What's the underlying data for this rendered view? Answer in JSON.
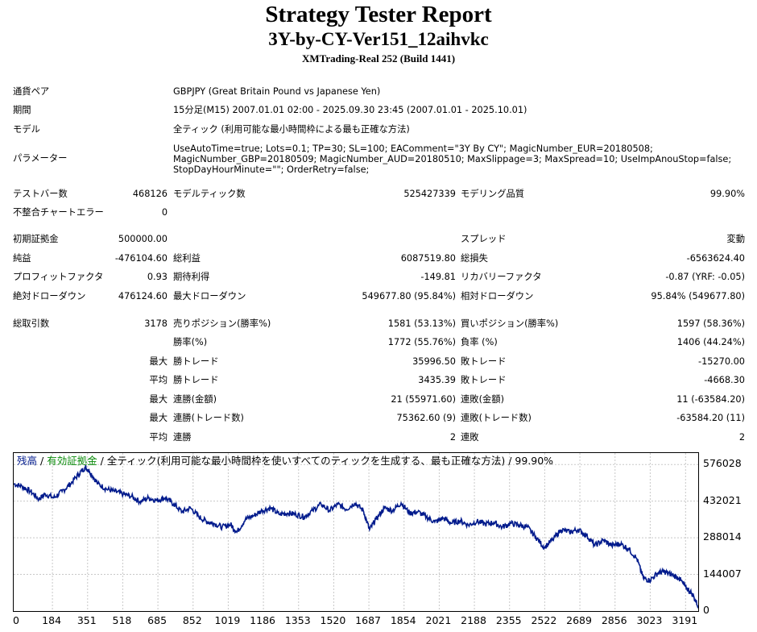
{
  "header": {
    "title": "Strategy Tester Report",
    "ea_name": "3Y-by-CY-Ver151_12aihvkc",
    "server": "XMTrading-Real 252 (Build 1441)"
  },
  "info": {
    "symbol_label": "通貨ペア",
    "symbol_value": "GBPJPY (Great Britain Pound vs Japanese Yen)",
    "period_label": "期間",
    "period_value": "15分足(M15) 2007.01.01 02:00 - 2025.09.30 23:45 (2007.01.01 - 2025.10.01)",
    "model_label": "モデル",
    "model_value": "全ティック (利用可能な最小時間枠による最も正確な方法)",
    "params_label": "パラメーター",
    "params_value": "UseAutoTime=true; Lots=0.1; TP=30; SL=100; EAComment=\"3Y By CY\"; MagicNumber_EUR=20180508; MagicNumber_GBP=20180509; MagicNumber_AUD=20180510; MaxSlippage=3; MaxSpread=10; UseImpAnouStop=false; StopDayHourMinute=\"\"; OrderRetry=false;"
  },
  "stats": {
    "bars_label": "テストバー数",
    "bars_value": "468126",
    "ticks_label": "モデルティック数",
    "ticks_value": "525427339",
    "quality_label": "モデリング品質",
    "quality_value": "99.90%",
    "mismatch_label": "不整合チャートエラー",
    "mismatch_value": "0",
    "deposit_label": "初期証拠金",
    "deposit_value": "500000.00",
    "spread_label": "スプレッド",
    "spread_value": "変動",
    "net_label": "純益",
    "net_value": "-476104.60",
    "gross_profit_label": "総利益",
    "gross_profit_value": "6087519.80",
    "gross_loss_label": "総損失",
    "gross_loss_value": "-6563624.40",
    "pf_label": "プロフィットファクタ",
    "pf_value": "0.93",
    "payoff_label": "期待利得",
    "payoff_value": "-149.81",
    "recovery_label": "リカバリーファクタ",
    "recovery_value": "-0.87 (YRF: -0.05)",
    "abs_dd_label": "絶対ドローダウン",
    "abs_dd_value": "476124.60",
    "max_dd_label": "最大ドローダウン",
    "max_dd_value": "549677.80 (95.84%)",
    "rel_dd_label": "相対ドローダウン",
    "rel_dd_value": "95.84% (549677.80)",
    "trades_label": "総取引数",
    "trades_value": "3178",
    "short_label": "売りポジション(勝率%)",
    "short_value": "1581 (53.13%)",
    "long_label": "買いポジション(勝率%)",
    "long_value": "1597 (58.36%)",
    "win_label": "勝率(%)",
    "win_value": "1772 (55.76%)",
    "loss_label": "負率 (%)",
    "loss_value": "1406 (44.24%)",
    "max_prefix": "最大",
    "avg_prefix": "平均",
    "largest_win_label": "勝トレード",
    "largest_win_value": "35996.50",
    "largest_loss_label": "敗トレード",
    "largest_loss_value": "-15270.00",
    "avg_win_label": "勝トレード",
    "avg_win_value": "3435.39",
    "avg_loss_label": "敗トレード",
    "avg_loss_value": "-4668.30",
    "consec_win_money_label": "連勝(金額)",
    "consec_win_money_value": "21 (55971.60)",
    "consec_loss_money_label": "連敗(金額)",
    "consec_loss_money_value": "11 (-63584.20)",
    "consec_win_trades_label": "連勝(トレード数)",
    "consec_win_trades_value": "75362.60 (9)",
    "consec_loss_trades_label": "連敗(トレード数)",
    "consec_loss_trades_value": "-63584.20 (11)",
    "avg_consec_win_label": "連勝",
    "avg_consec_win_value": "2",
    "avg_consec_loss_label": "連敗",
    "avg_consec_loss_value": "2"
  },
  "chart_data": {
    "type": "line",
    "title_balance": "残高",
    "title_sep": " / ",
    "title_equity": "有効証拠金",
    "title_rest": " / 全ティック(利用可能な最小時間枠を使いすべてのティックを生成する、最も正確な方法) / 99.90%",
    "ylim": [
      0,
      621000
    ],
    "xlim": [
      0,
      3251
    ],
    "y_ticks": [
      576028,
      432021,
      288014,
      144007,
      0
    ],
    "y_tick_labels": [
      "576028",
      "432021",
      "288014",
      "144007",
      "0"
    ],
    "x_ticks": [
      0,
      184,
      351,
      518,
      685,
      852,
      1019,
      1186,
      1353,
      1520,
      1687,
      1854,
      2021,
      2188,
      2355,
      2522,
      2689,
      2856,
      3023,
      3191
    ],
    "x_tick_labels": [
      "0",
      "184",
      "351",
      "518",
      "685",
      "852",
      "1019",
      "1186",
      "1353",
      "1520",
      "1687",
      "1854",
      "2021",
      "2188",
      "2355",
      "2522",
      "2689",
      "2856",
      "3023",
      "3191"
    ],
    "colors": {
      "line": "#001a8c",
      "grid": "#c8c8c8",
      "equity_label": "#0a8a0a"
    },
    "series": [
      {
        "name": "残高",
        "x": [
          0,
          40,
          80,
          120,
          150,
          190,
          230,
          270,
          310,
          340,
          360,
          400,
          440,
          480,
          520,
          560,
          600,
          640,
          680,
          720,
          760,
          800,
          840,
          880,
          920,
          950,
          990,
          1030,
          1060,
          1100,
          1140,
          1180,
          1220,
          1260,
          1300,
          1340,
          1380,
          1420,
          1460,
          1500,
          1540,
          1580,
          1620,
          1660,
          1690,
          1720,
          1760,
          1800,
          1840,
          1880,
          1920,
          1960,
          2000,
          2040,
          2080,
          2120,
          2160,
          2200,
          2240,
          2280,
          2320,
          2360,
          2400,
          2440,
          2480,
          2520,
          2560,
          2600,
          2640,
          2680,
          2720,
          2760,
          2800,
          2840,
          2880,
          2920,
          2960,
          2990,
          3020,
          3060,
          3090,
          3120,
          3160,
          3190,
          3220,
          3251
        ],
        "values": [
          500000,
          490000,
          470000,
          440000,
          460000,
          445000,
          470000,
          500000,
          540000,
          565000,
          550000,
          500000,
          480000,
          470000,
          460000,
          450000,
          430000,
          445000,
          435000,
          445000,
          420000,
          390000,
          405000,
          370000,
          350000,
          345000,
          330000,
          340000,
          310000,
          360000,
          375000,
          395000,
          405000,
          380000,
          385000,
          380000,
          370000,
          395000,
          420000,
          395000,
          420000,
          400000,
          425000,
          395000,
          320000,
          360000,
          405000,
          395000,
          425000,
          385000,
          390000,
          370000,
          350000,
          365000,
          345000,
          355000,
          338000,
          352000,
          342000,
          348000,
          330000,
          345000,
          338000,
          330000,
          290000,
          250000,
          280000,
          320000,
          310000,
          320000,
          298000,
          258000,
          278000,
          258000,
          265000,
          245000,
          205000,
          130000,
          120000,
          150000,
          155000,
          145000,
          130000,
          95000,
          70000,
          20000
        ]
      }
    ]
  }
}
